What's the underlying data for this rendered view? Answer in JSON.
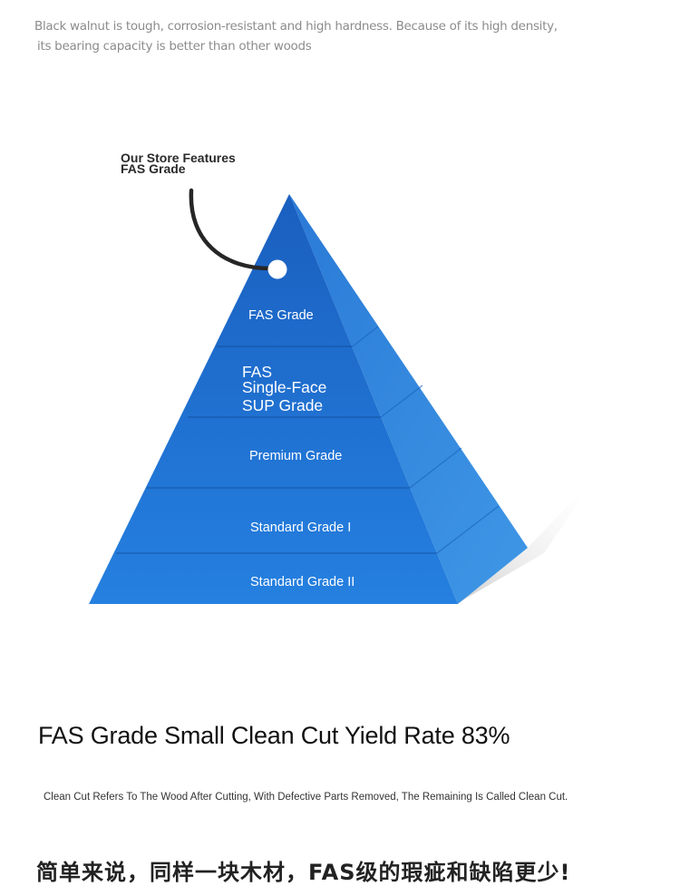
{
  "intro": {
    "line1": "Black walnut is tough, corrosion-resistant and high hardness. Because of its high density,",
    "line2": "its bearing capacity is better than other woods"
  },
  "callout": {
    "line1": "Our Store Features",
    "line2": "FAS Grade"
  },
  "pyramid": {
    "colors": {
      "front": "#1f73d6",
      "front_dark": "#1656ad",
      "side": "#3f97e6",
      "shadow": "#cfcfcf"
    },
    "tiers": [
      {
        "label": "FAS Grade"
      },
      {
        "lines": [
          "FAS",
          "Single-Face",
          "SUP Grade"
        ]
      },
      {
        "label": "Premium Grade"
      },
      {
        "label": "Standard Grade I"
      },
      {
        "label": "Standard Grade II"
      }
    ]
  },
  "heading": "FAS Grade Small Clean Cut Yield Rate 83%",
  "note": "Clean Cut Refers To The Wood After Cutting, With Defective Parts Removed, The Remaining Is Called Clean Cut.",
  "cjk_line": "简单来说，同样一块木材，FAS级的瑕疵和缺陷更少!"
}
